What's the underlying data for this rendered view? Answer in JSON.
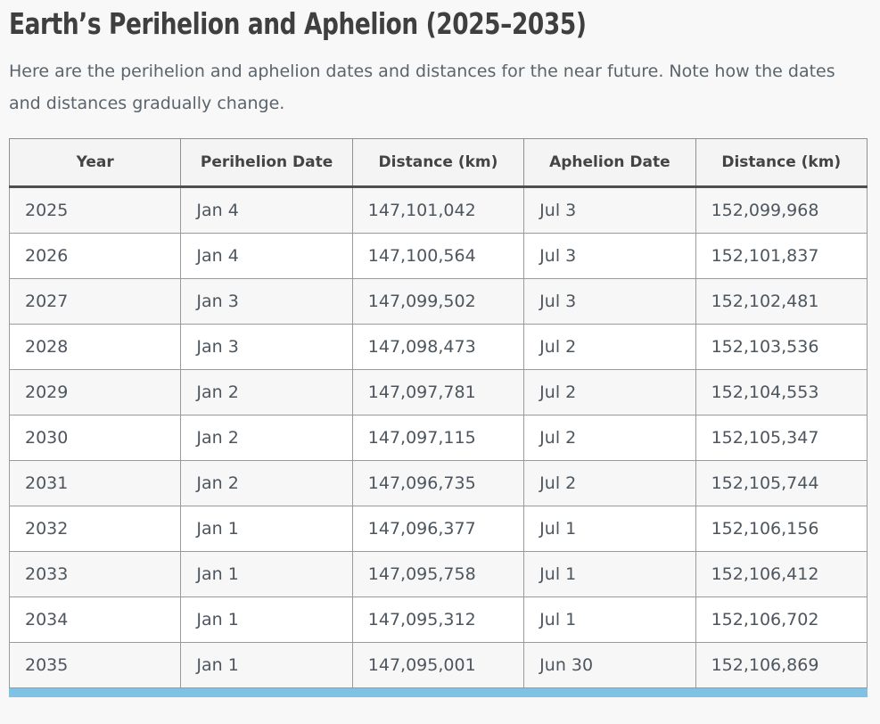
{
  "page": {
    "title": "Earth’s Perihelion and Aphelion (2025–2035)",
    "intro": "Here are the perihelion and aphelion dates and distances for the near future. Note how the dates and distances gradually change."
  },
  "table": {
    "columns": [
      "Year",
      "Perihelion Date",
      "Distance (km)",
      "Aphelion Date",
      "Distance (km)"
    ],
    "column_keys": [
      "year",
      "perihelion-date",
      "perihelion-distance",
      "aphelion-date",
      "aphelion-distance"
    ],
    "rows": [
      [
        "2025",
        "Jan 4",
        "147,101,042",
        "Jul 3",
        "152,099,968"
      ],
      [
        "2026",
        "Jan 4",
        "147,100,564",
        "Jul 3",
        "152,101,837"
      ],
      [
        "2027",
        "Jan 3",
        "147,099,502",
        "Jul 3",
        "152,102,481"
      ],
      [
        "2028",
        "Jan 3",
        "147,098,473",
        "Jul 2",
        "152,103,536"
      ],
      [
        "2029",
        "Jan 2",
        "147,097,781",
        "Jul 2",
        "152,104,553"
      ],
      [
        "2030",
        "Jan 2",
        "147,097,115",
        "Jul 2",
        "152,105,347"
      ],
      [
        "2031",
        "Jan 2",
        "147,096,735",
        "Jul 2",
        "152,105,744"
      ],
      [
        "2032",
        "Jan 1",
        "147,096,377",
        "Jul 1",
        "152,106,156"
      ],
      [
        "2033",
        "Jan 1",
        "147,095,758",
        "Jul 1",
        "152,106,412"
      ],
      [
        "2034",
        "Jan 1",
        "147,095,312",
        "Jul 1",
        "152,106,702"
      ],
      [
        "2035",
        "Jan 1",
        "147,095,001",
        "Jun 30",
        "152,106,869"
      ]
    ]
  },
  "colors": {
    "scrollbar_accent": "#80c2e4",
    "row_stripe": "#f7f7f7",
    "header_background": "#f4f4f4",
    "title_text": "#3f3f3f",
    "body_text": "#5a646c"
  }
}
